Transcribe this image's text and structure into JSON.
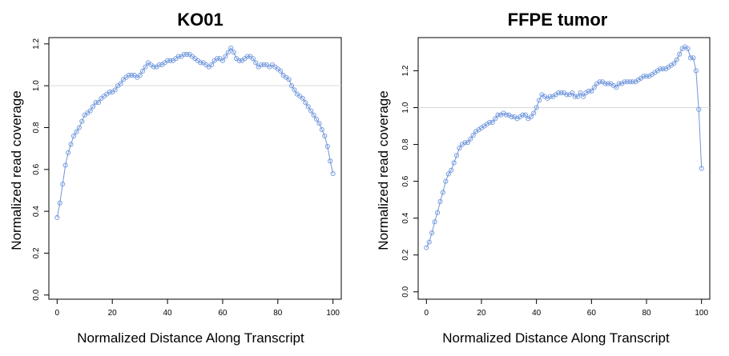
{
  "chart_data": [
    {
      "type": "line",
      "title": "KO01",
      "xlabel": "Normalized  Distance Along  Transcript",
      "ylabel": "Normalized  read coverage",
      "xlim": [
        -3,
        103
      ],
      "ylim": [
        -0.02,
        1.23
      ],
      "xticks": [
        0,
        20,
        40,
        60,
        80,
        100
      ],
      "xtick_labels": [
        "0",
        "20",
        "40",
        "60",
        "80",
        "100"
      ],
      "yticks": [
        0.0,
        0.2,
        0.4,
        0.6,
        0.8,
        1.0,
        1.2
      ],
      "ytick_labels": [
        "0.0",
        "0.2",
        "0.4",
        "0.6",
        "0.8",
        "1.0",
        "1.2"
      ],
      "reference_line": 1.0,
      "grid": false,
      "series": [
        {
          "color": "#6f96dc",
          "marker": "circle",
          "x": [
            0,
            1,
            2,
            3,
            4,
            5,
            6,
            7,
            8,
            9,
            10,
            11,
            12,
            13,
            14,
            15,
            16,
            17,
            18,
            19,
            20,
            21,
            22,
            23,
            24,
            25,
            26,
            27,
            28,
            29,
            30,
            31,
            32,
            33,
            34,
            35,
            36,
            37,
            38,
            39,
            40,
            41,
            42,
            43,
            44,
            45,
            46,
            47,
            48,
            49,
            50,
            51,
            52,
            53,
            54,
            55,
            56,
            57,
            58,
            59,
            60,
            61,
            62,
            63,
            64,
            65,
            66,
            67,
            68,
            69,
            70,
            71,
            72,
            73,
            74,
            75,
            76,
            77,
            78,
            79,
            80,
            81,
            82,
            83,
            84,
            85,
            86,
            87,
            88,
            89,
            90,
            91,
            92,
            93,
            94,
            95,
            96,
            97,
            98,
            99,
            100
          ],
          "values": [
            0.37,
            0.44,
            0.53,
            0.62,
            0.68,
            0.72,
            0.76,
            0.78,
            0.8,
            0.83,
            0.86,
            0.87,
            0.88,
            0.9,
            0.92,
            0.92,
            0.94,
            0.95,
            0.96,
            0.97,
            0.97,
            0.98,
            1.0,
            1.01,
            1.03,
            1.04,
            1.05,
            1.05,
            1.05,
            1.04,
            1.05,
            1.07,
            1.09,
            1.11,
            1.1,
            1.09,
            1.09,
            1.1,
            1.1,
            1.11,
            1.12,
            1.12,
            1.12,
            1.13,
            1.14,
            1.14,
            1.15,
            1.15,
            1.15,
            1.14,
            1.13,
            1.12,
            1.11,
            1.11,
            1.1,
            1.09,
            1.1,
            1.12,
            1.13,
            1.13,
            1.12,
            1.14,
            1.16,
            1.18,
            1.16,
            1.13,
            1.12,
            1.12,
            1.13,
            1.14,
            1.14,
            1.13,
            1.11,
            1.09,
            1.1,
            1.1,
            1.1,
            1.09,
            1.1,
            1.09,
            1.08,
            1.07,
            1.05,
            1.04,
            1.03,
            1.0,
            0.98,
            0.96,
            0.95,
            0.94,
            0.92,
            0.9,
            0.88,
            0.86,
            0.84,
            0.82,
            0.79,
            0.76,
            0.71,
            0.64,
            0.58
          ]
        }
      ]
    },
    {
      "type": "line",
      "title": "FFPE tumor",
      "xlabel": "Normalized  Distance Along  Transcript",
      "ylabel": "Normalized  read coverage",
      "xlim": [
        -3,
        103
      ],
      "ylim": [
        -0.04,
        1.38
      ],
      "xticks": [
        0,
        20,
        40,
        60,
        80,
        100
      ],
      "xtick_labels": [
        "0",
        "20",
        "40",
        "60",
        "80",
        "100"
      ],
      "yticks": [
        0.0,
        0.2,
        0.4,
        0.6,
        0.8,
        1.0,
        1.2
      ],
      "ytick_labels": [
        "0.0",
        "0.2",
        "0.4",
        "0.6",
        "0.8",
        "1.0",
        "1.2"
      ],
      "reference_line": 1.0,
      "grid": false,
      "series": [
        {
          "color": "#6f96dc",
          "marker": "circle",
          "x": [
            0,
            1,
            2,
            3,
            4,
            5,
            6,
            7,
            8,
            9,
            10,
            11,
            12,
            13,
            14,
            15,
            16,
            17,
            18,
            19,
            20,
            21,
            22,
            23,
            24,
            25,
            26,
            27,
            28,
            29,
            30,
            31,
            32,
            33,
            34,
            35,
            36,
            37,
            38,
            39,
            40,
            41,
            42,
            43,
            44,
            45,
            46,
            47,
            48,
            49,
            50,
            51,
            52,
            53,
            54,
            55,
            56,
            57,
            58,
            59,
            60,
            61,
            62,
            63,
            64,
            65,
            66,
            67,
            68,
            69,
            70,
            71,
            72,
            73,
            74,
            75,
            76,
            77,
            78,
            79,
            80,
            81,
            82,
            83,
            84,
            85,
            86,
            87,
            88,
            89,
            90,
            91,
            92,
            93,
            94,
            95,
            96,
            97,
            98,
            99,
            100
          ],
          "values": [
            0.24,
            0.27,
            0.32,
            0.38,
            0.43,
            0.49,
            0.54,
            0.6,
            0.64,
            0.66,
            0.7,
            0.74,
            0.78,
            0.8,
            0.81,
            0.81,
            0.83,
            0.85,
            0.87,
            0.88,
            0.89,
            0.9,
            0.91,
            0.92,
            0.92,
            0.94,
            0.96,
            0.96,
            0.97,
            0.96,
            0.96,
            0.95,
            0.95,
            0.94,
            0.95,
            0.96,
            0.96,
            0.94,
            0.95,
            0.97,
            1.0,
            1.04,
            1.07,
            1.06,
            1.05,
            1.06,
            1.06,
            1.07,
            1.08,
            1.08,
            1.08,
            1.07,
            1.07,
            1.08,
            1.06,
            1.06,
            1.08,
            1.06,
            1.08,
            1.09,
            1.09,
            1.11,
            1.13,
            1.14,
            1.14,
            1.13,
            1.13,
            1.13,
            1.12,
            1.11,
            1.13,
            1.13,
            1.14,
            1.14,
            1.14,
            1.14,
            1.14,
            1.15,
            1.16,
            1.17,
            1.17,
            1.17,
            1.18,
            1.19,
            1.2,
            1.21,
            1.21,
            1.21,
            1.22,
            1.23,
            1.24,
            1.26,
            1.29,
            1.32,
            1.33,
            1.32,
            1.27,
            1.27,
            1.2,
            0.99,
            0.67
          ]
        }
      ]
    }
  ]
}
